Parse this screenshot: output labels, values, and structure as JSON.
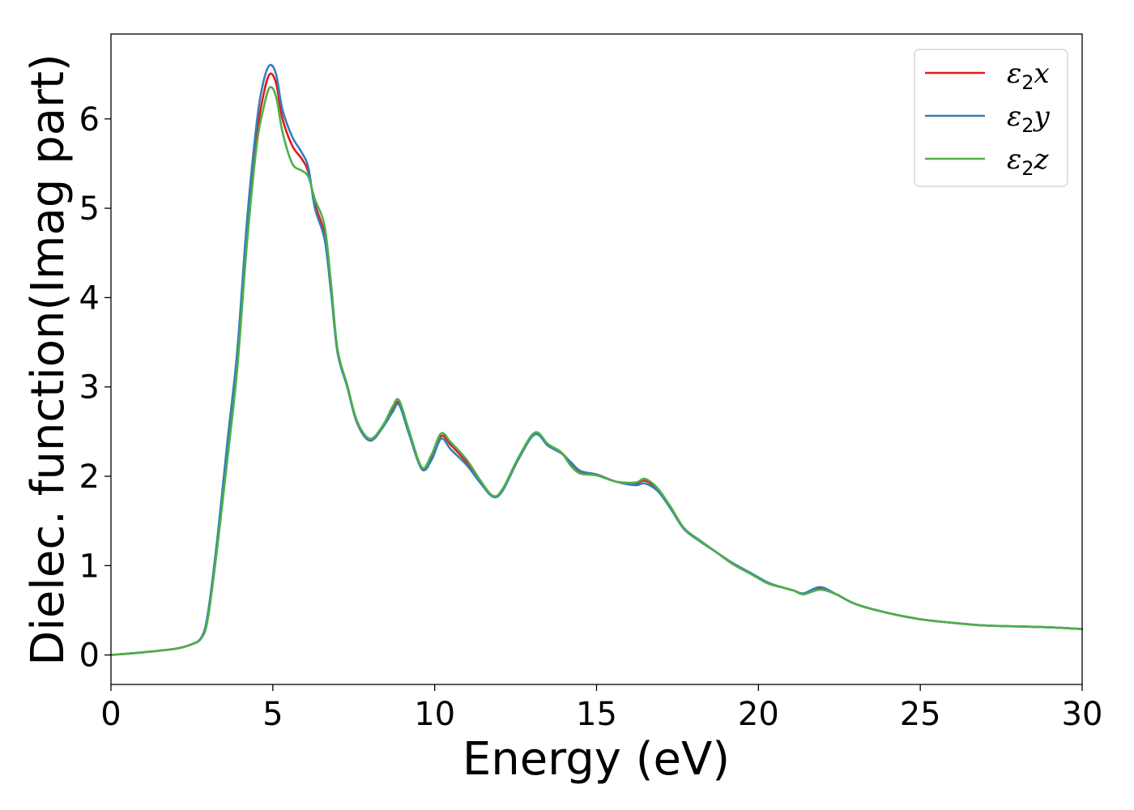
{
  "chart_data": {
    "type": "line",
    "title": "",
    "xlabel": "Energy (eV)",
    "ylabel": "Dielec. function(Imag part)",
    "xlim": [
      0,
      30
    ],
    "ylim": [
      -0.33,
      6.95
    ],
    "xticks": [
      0,
      5,
      10,
      15,
      20,
      25,
      30
    ],
    "yticks": [
      0,
      1,
      2,
      3,
      4,
      5,
      6
    ],
    "grid": false,
    "legend_position": "top-right",
    "series": [
      {
        "name": "ε2x",
        "color": "#e31a1c",
        "x": [
          0,
          1,
          2,
          2.5,
          2.8,
          3.0,
          3.3,
          3.6,
          3.9,
          4.2,
          4.5,
          4.7,
          4.9,
          5.1,
          5.3,
          5.6,
          5.9,
          6.1,
          6.3,
          6.6,
          6.8,
          7.0,
          7.3,
          7.6,
          8.0,
          8.4,
          8.7,
          8.9,
          9.2,
          9.6,
          9.9,
          10.2,
          10.5,
          11.0,
          11.4,
          11.8,
          12.1,
          12.6,
          13.1,
          13.5,
          13.9,
          14.2,
          14.5,
          15.0,
          15.6,
          16.2,
          16.5,
          16.9,
          17.3,
          17.7,
          18.2,
          18.7,
          19.2,
          19.8,
          20.3,
          20.8,
          21.1,
          21.4,
          21.9,
          22.4,
          23.0,
          24.0,
          25.0,
          26.0,
          27.0,
          28.0,
          29.0,
          30.0
        ],
        "y": [
          0.0,
          0.03,
          0.07,
          0.12,
          0.2,
          0.45,
          1.3,
          2.3,
          3.3,
          4.7,
          5.8,
          6.25,
          6.5,
          6.4,
          6.0,
          5.7,
          5.55,
          5.4,
          5.05,
          4.7,
          4.1,
          3.4,
          3.0,
          2.6,
          2.4,
          2.55,
          2.75,
          2.82,
          2.5,
          2.1,
          2.2,
          2.45,
          2.35,
          2.15,
          1.95,
          1.78,
          1.85,
          2.2,
          2.48,
          2.35,
          2.27,
          2.15,
          2.05,
          2.02,
          1.94,
          1.92,
          1.95,
          1.85,
          1.65,
          1.42,
          1.28,
          1.15,
          1.02,
          0.9,
          0.8,
          0.75,
          0.72,
          0.68,
          0.74,
          0.68,
          0.57,
          0.47,
          0.4,
          0.36,
          0.33,
          0.32,
          0.31,
          0.29
        ]
      },
      {
        "name": "ε2y",
        "color": "#377eb8",
        "x": [
          0,
          1,
          2,
          2.5,
          2.8,
          3.0,
          3.3,
          3.6,
          3.9,
          4.2,
          4.5,
          4.7,
          4.9,
          5.1,
          5.3,
          5.6,
          5.9,
          6.1,
          6.3,
          6.6,
          6.8,
          7.0,
          7.3,
          7.6,
          8.0,
          8.4,
          8.7,
          8.9,
          9.2,
          9.6,
          9.9,
          10.2,
          10.5,
          11.0,
          11.4,
          11.8,
          12.1,
          12.6,
          13.1,
          13.5,
          13.9,
          14.2,
          14.5,
          15.0,
          15.6,
          16.2,
          16.5,
          16.9,
          17.3,
          17.7,
          18.2,
          18.7,
          19.2,
          19.8,
          20.3,
          20.8,
          21.1,
          21.4,
          21.9,
          22.4,
          23.0,
          24.0,
          25.0,
          26.0,
          27.0,
          28.0,
          29.0,
          30.0
        ],
        "y": [
          0.0,
          0.03,
          0.07,
          0.12,
          0.2,
          0.48,
          1.35,
          2.4,
          3.4,
          4.85,
          5.95,
          6.4,
          6.6,
          6.5,
          6.1,
          5.8,
          5.62,
          5.45,
          5.0,
          4.65,
          4.05,
          3.38,
          3.0,
          2.6,
          2.4,
          2.55,
          2.72,
          2.8,
          2.48,
          2.08,
          2.18,
          2.42,
          2.3,
          2.12,
          1.93,
          1.77,
          1.84,
          2.2,
          2.47,
          2.34,
          2.26,
          2.16,
          2.06,
          2.02,
          1.94,
          1.9,
          1.92,
          1.83,
          1.63,
          1.41,
          1.27,
          1.15,
          1.03,
          0.91,
          0.81,
          0.75,
          0.72,
          0.69,
          0.76,
          0.68,
          0.57,
          0.47,
          0.4,
          0.36,
          0.33,
          0.32,
          0.31,
          0.29
        ]
      },
      {
        "name": "ε2z",
        "color": "#4daf4a",
        "x": [
          0,
          1,
          2,
          2.5,
          2.8,
          3.0,
          3.3,
          3.6,
          3.9,
          4.2,
          4.5,
          4.7,
          4.9,
          5.1,
          5.3,
          5.6,
          5.9,
          6.1,
          6.3,
          6.6,
          6.8,
          7.0,
          7.3,
          7.6,
          8.0,
          8.4,
          8.7,
          8.9,
          9.2,
          9.6,
          9.9,
          10.2,
          10.5,
          11.0,
          11.4,
          11.8,
          12.1,
          12.6,
          13.1,
          13.5,
          13.9,
          14.2,
          14.5,
          15.0,
          15.6,
          16.2,
          16.5,
          16.9,
          17.3,
          17.7,
          18.2,
          18.7,
          19.2,
          19.8,
          20.3,
          20.8,
          21.1,
          21.4,
          21.9,
          22.4,
          23.0,
          24.0,
          25.0,
          26.0,
          27.0,
          28.0,
          29.0,
          30.0
        ],
        "y": [
          0.0,
          0.03,
          0.07,
          0.12,
          0.19,
          0.42,
          1.25,
          2.2,
          3.2,
          4.6,
          5.7,
          6.1,
          6.35,
          6.25,
          5.85,
          5.5,
          5.42,
          5.35,
          5.1,
          4.8,
          4.15,
          3.42,
          3.02,
          2.62,
          2.42,
          2.57,
          2.78,
          2.85,
          2.52,
          2.1,
          2.24,
          2.48,
          2.38,
          2.18,
          1.96,
          1.78,
          1.86,
          2.22,
          2.49,
          2.36,
          2.27,
          2.12,
          2.03,
          2.01,
          1.94,
          1.93,
          1.97,
          1.86,
          1.65,
          1.42,
          1.28,
          1.15,
          1.02,
          0.9,
          0.8,
          0.75,
          0.72,
          0.68,
          0.73,
          0.68,
          0.57,
          0.47,
          0.4,
          0.36,
          0.33,
          0.32,
          0.31,
          0.29
        ]
      }
    ]
  }
}
